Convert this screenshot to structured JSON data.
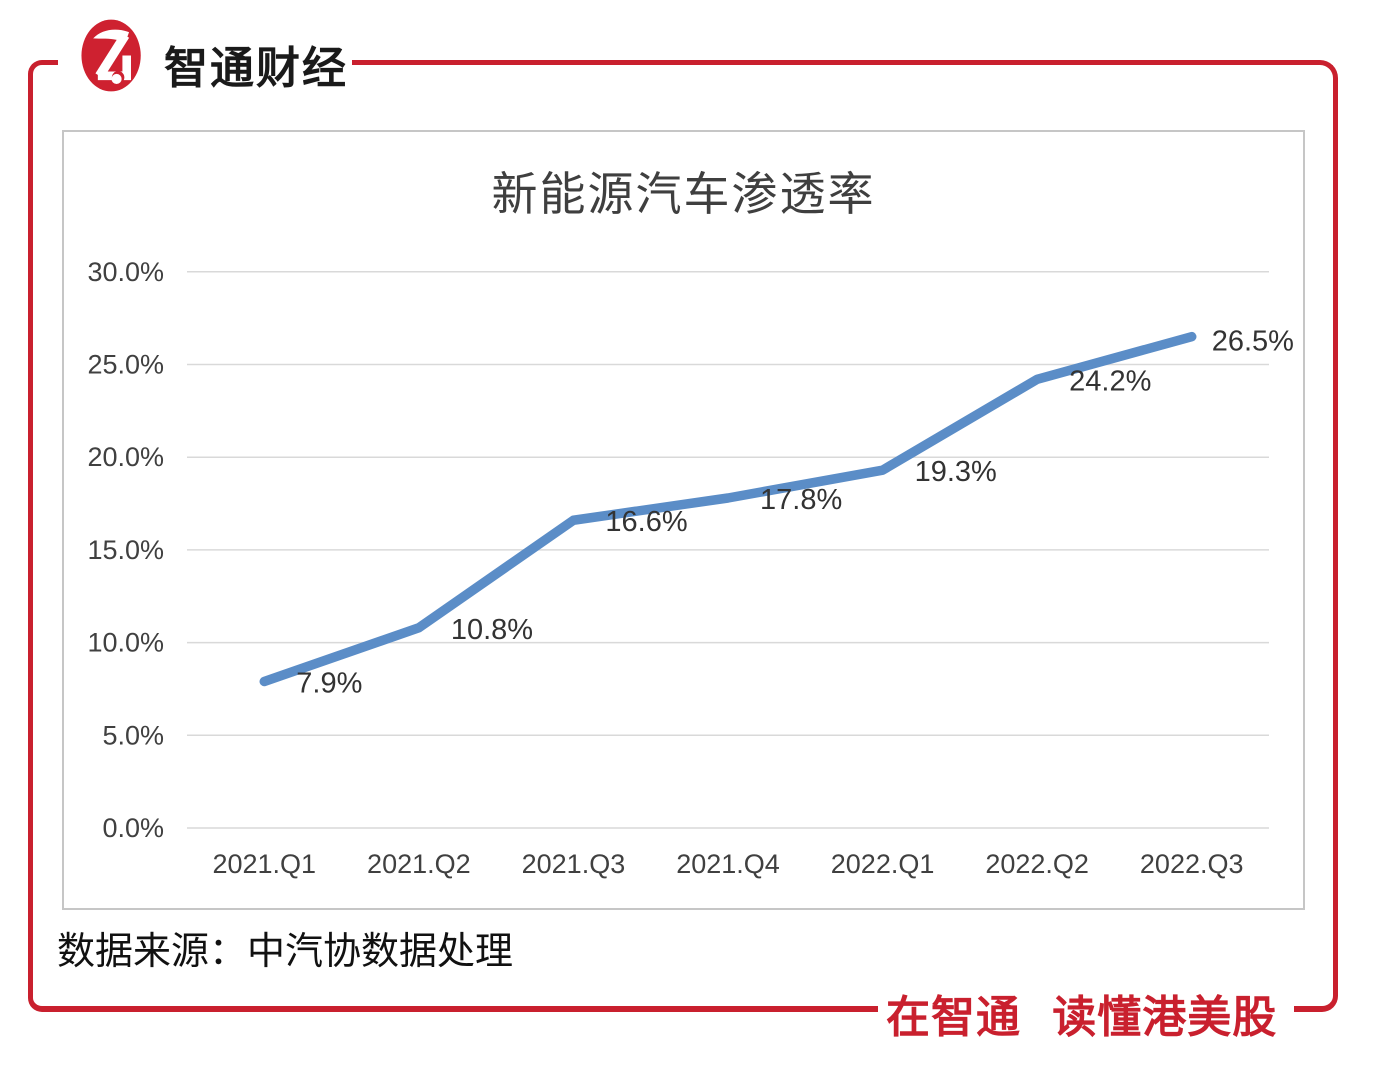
{
  "brand": {
    "name": "智通财经",
    "accent_red": "#C9202E"
  },
  "chart_data": {
    "type": "line",
    "title": "新能源汽车渗透率",
    "categories": [
      "2021.Q1",
      "2021.Q2",
      "2021.Q3",
      "2021.Q4",
      "2022.Q1",
      "2022.Q2",
      "2022.Q3"
    ],
    "values": [
      7.9,
      10.8,
      16.6,
      17.8,
      19.3,
      24.2,
      26.5
    ],
    "point_labels": [
      "7.9%",
      "10.8%",
      "16.6%",
      "17.8%",
      "19.3%",
      "24.2%",
      "26.5%"
    ],
    "y_ticks": [
      "30.0%",
      "25.0%",
      "20.0%",
      "15.0%",
      "10.0%",
      "5.0%",
      "0.0%"
    ],
    "ylim": [
      0,
      30
    ],
    "xlabel": "",
    "ylabel": "",
    "grid": true,
    "legend": "none",
    "line_color": "#5B8DC7",
    "grid_color": "#D9D9D9",
    "axis_text_color": "#404040",
    "point_label_color": "#333333"
  },
  "footer": {
    "source_text": "数据来源：中汽协数据处理",
    "slogan": "在智通 读懂港美股"
  }
}
